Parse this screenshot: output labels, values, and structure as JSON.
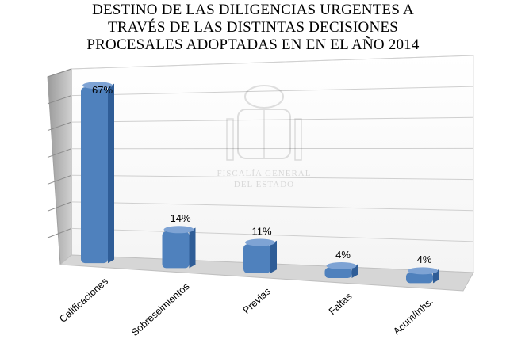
{
  "chart_data": {
    "type": "bar",
    "title_lines": [
      "DESTINO DE LAS DILIGENCIAS URGENTES A",
      "TRAVÉS DE LAS DISTINTAS DECISIONES",
      "PROCESALES ADOPTADAS EN EN EL AÑO 2014"
    ],
    "categories": [
      "Calificaciones",
      "Sobreseimientos",
      "Previas",
      "Faltas",
      "Acum/Inhs."
    ],
    "values": [
      67,
      14,
      11,
      4,
      4
    ],
    "data_labels": [
      "67%",
      "14%",
      "11%",
      "4%",
      "4%"
    ],
    "ylim": [
      0,
      70
    ],
    "grid": true,
    "legend": "none",
    "watermark": {
      "lines": [
        "FISCALÍA GENERAL",
        "DEL ESTADO"
      ]
    },
    "colors": {
      "bar_front": "#4f81bd",
      "bar_side": "#2f5d97",
      "bar_top": "#7ea3d4",
      "gridline": "#cfcfcf",
      "floor": "#d6d6d6",
      "wall_left": "#b7b7b7"
    }
  }
}
